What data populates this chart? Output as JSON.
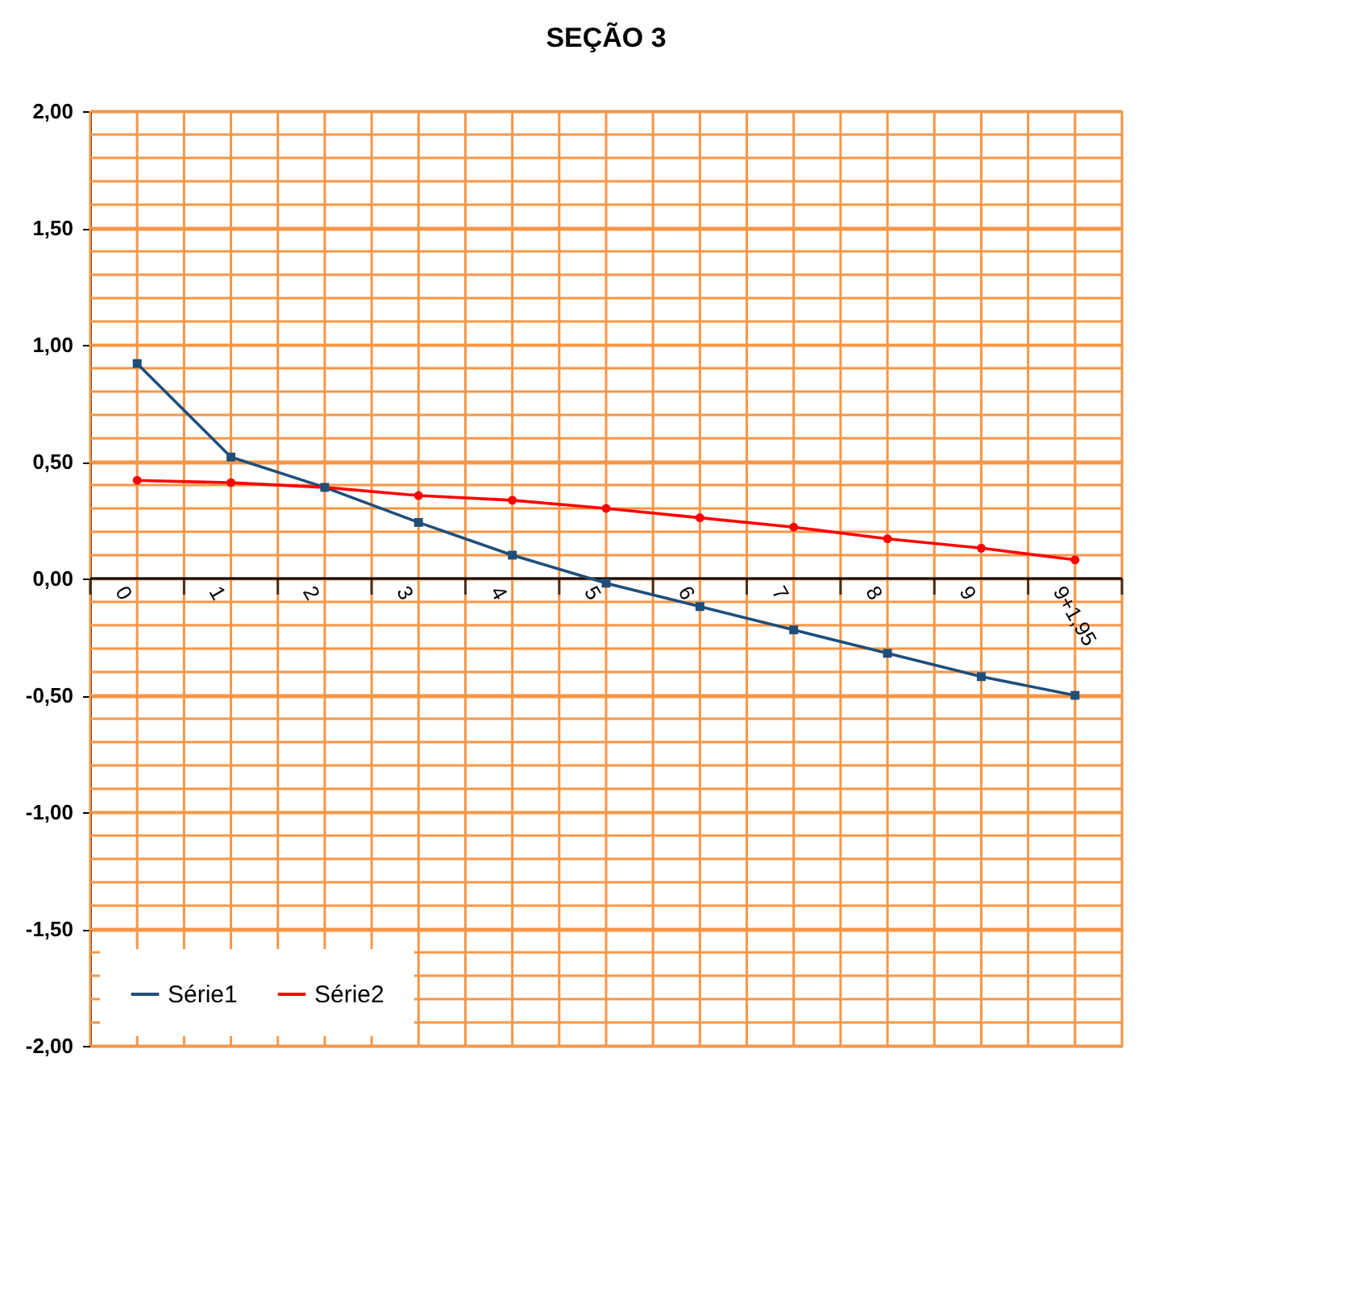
{
  "chart_data": {
    "type": "line",
    "title": "SEÇÃO 3",
    "categories": [
      "0",
      "1",
      "2",
      "3",
      "4",
      "5",
      "6",
      "7",
      "8",
      "9",
      "9+1,95"
    ],
    "series": [
      {
        "name": "Série1",
        "color": "#1f4e79",
        "marker": "square",
        "values": [
          0.92,
          0.52,
          0.39,
          0.24,
          0.1,
          -0.02,
          -0.12,
          -0.22,
          -0.32,
          -0.42,
          -0.5
        ]
      },
      {
        "name": "Série2",
        "color": "#ff0000",
        "marker": "circle",
        "values": [
          0.42,
          0.41,
          0.39,
          0.355,
          0.335,
          0.3,
          0.26,
          0.22,
          0.17,
          0.13,
          0.08
        ]
      }
    ],
    "ylim": [
      -2,
      2
    ],
    "yticks": [
      {
        "value": -2,
        "label": "-2,00"
      },
      {
        "value": -1.5,
        "label": "-1,50"
      },
      {
        "value": -1,
        "label": "-1,00"
      },
      {
        "value": -0.5,
        "label": "-0,50"
      },
      {
        "value": 0,
        "label": "0,00"
      },
      {
        "value": 0.5,
        "label": "0,50"
      },
      {
        "value": 1,
        "label": "1,00"
      },
      {
        "value": 1.5,
        "label": "1,50"
      },
      {
        "value": 2,
        "label": "2,00"
      }
    ],
    "grid": true,
    "legend": "bottom left",
    "line_style": "solid"
  }
}
